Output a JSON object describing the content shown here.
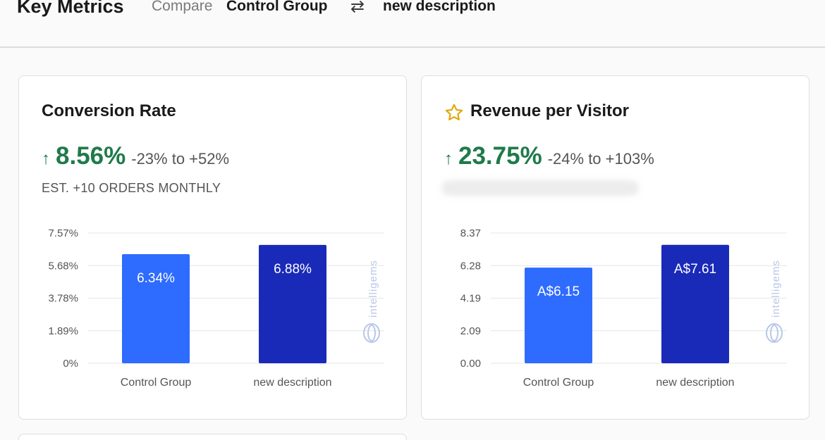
{
  "header": {
    "title": "Key Metrics",
    "compare_label": "Compare",
    "group_a": "Control Group",
    "swap_icon": "swap-arrows-icon",
    "group_b": "new description"
  },
  "cards": [
    {
      "title": "Conversion Rate",
      "lift": "8.56%",
      "range": "-23% to +52%",
      "est": "EST. +10 ORDERS MONTHLY",
      "colors": {
        "lift": "#1f7a4a",
        "control": "#2e6bff",
        "variant": "#1a2ab8"
      },
      "watermark": "intelligems"
    },
    {
      "title": "Revenue per Visitor",
      "favorite_icon": "star-icon",
      "lift": "23.75%",
      "range": "-24% to +103%",
      "watermark": "intelligems"
    }
  ],
  "chart_data": [
    {
      "type": "bar",
      "categories": [
        "Control Group",
        "new description"
      ],
      "values": [
        6.34,
        6.88
      ],
      "value_labels": [
        "6.34%",
        "6.88%"
      ],
      "ticks": [
        "0%",
        "1.89%",
        "3.78%",
        "5.68%",
        "7.57%"
      ],
      "ylim": [
        0,
        7.57
      ]
    },
    {
      "type": "bar",
      "categories": [
        "Control Group",
        "new description"
      ],
      "values": [
        6.15,
        7.61
      ],
      "value_labels": [
        "A$6.15",
        "A$7.61"
      ],
      "ticks": [
        "0.00",
        "2.09",
        "4.19",
        "6.28",
        "8.37"
      ],
      "ylim": [
        0,
        8.37
      ]
    }
  ]
}
